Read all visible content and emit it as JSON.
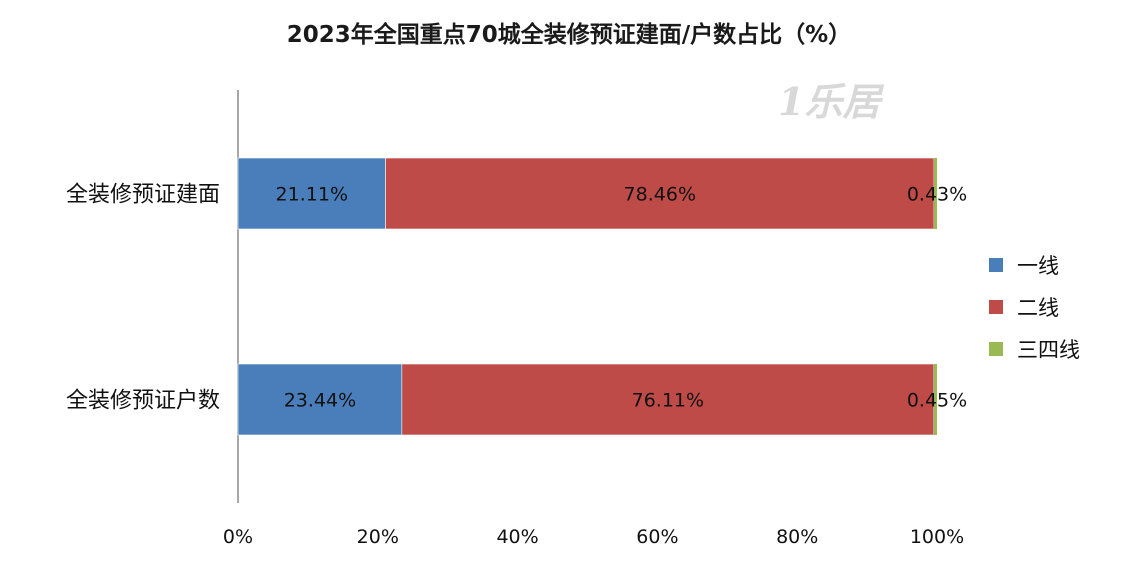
{
  "chart_data": {
    "type": "bar",
    "orientation": "horizontal",
    "stacked": true,
    "percent": true,
    "title": "2023年全国重点70城全装修预证建面/户数占比（%）",
    "categories": [
      "全装修预证建面",
      "全装修预证户数"
    ],
    "series": [
      {
        "name": "一线",
        "color": "#4a7ebb",
        "values": [
          21.11,
          23.44
        ],
        "labels": [
          "21.11%",
          "23.44%"
        ]
      },
      {
        "name": "二线",
        "color": "#be4b48",
        "values": [
          78.46,
          76.11
        ],
        "labels": [
          "78.46%",
          "76.11%"
        ]
      },
      {
        "name": "三四线",
        "color": "#98b954",
        "values": [
          0.43,
          0.45
        ],
        "labels": [
          "0.43%",
          "0.45%"
        ]
      }
    ],
    "xlim": [
      0,
      100
    ],
    "xticks": [
      "0%",
      "20%",
      "40%",
      "60%",
      "80%",
      "100%"
    ],
    "grid": false,
    "legend_position": "right"
  },
  "watermark": "1乐居"
}
